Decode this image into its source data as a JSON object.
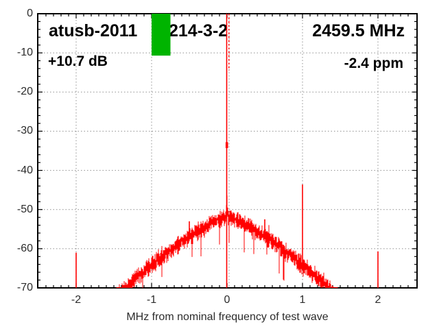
{
  "annotations": {
    "title_left": "atusb-2011",
    "title_right": "214-3-2",
    "frequency": "2459.5 MHz",
    "level": "+10.7 dB",
    "ppm_offset": "-2.4 ppm"
  },
  "chart_data": {
    "type": "line",
    "title": "atusb-2011 214-3-2",
    "xlabel": "MHz from nominal frequency of test wave",
    "ylabel": "",
    "xlim": [
      -2.5,
      2.5
    ],
    "ylim": [
      -70,
      0
    ],
    "x_major_ticks": [
      -2,
      -1,
      0,
      1,
      2
    ],
    "x_tick_labels": [
      "-2",
      "-1",
      "0",
      "1",
      "2"
    ],
    "y_major_ticks": [
      0,
      -10,
      -20,
      -30,
      -40,
      -50,
      -60,
      -70
    ],
    "y_tick_labels": [
      "0",
      "-10",
      "-20",
      "-30",
      "-40",
      "-50",
      "-60",
      "-70"
    ],
    "x_minor_step": 0.1,
    "y_minor_step": 2,
    "grid": {
      "horizontal_db": [
        -10,
        -20,
        -30,
        -40,
        -50,
        -60
      ],
      "vertical_mhz": [
        -2,
        -1,
        0,
        1,
        2
      ],
      "style": "dotted",
      "color": "#9b9b9b"
    },
    "trace_color": "#ff0000",
    "carrier_peak": {
      "mhz": 0,
      "db_top": 0,
      "pedestal_db": -49.5,
      "shoulder_db": -33.5
    },
    "zero_marker": {
      "mhz": 0.025,
      "db_top": 0,
      "db_bottom": -14.5,
      "color": "#ff0000",
      "style": "dashed"
    },
    "noise_hump": {
      "center_db": -51.8,
      "edge_mhz": 1.35,
      "edge_db": -70,
      "shape_exponent": 1.3,
      "jitter_db": 1.8
    },
    "spurs": [
      {
        "mhz": -2.0,
        "db_top": -61.0
      },
      {
        "mhz": -0.76,
        "db_top": -60.0
      },
      {
        "mhz": -0.5,
        "db_top": -53.0
      },
      {
        "mhz": 0.5,
        "db_top": -52.5
      },
      {
        "mhz": 0.75,
        "db_top": -59.0
      },
      {
        "mhz": 1.0,
        "db_top": -43.6
      },
      {
        "mhz": 2.0,
        "db_top": -60.7
      }
    ],
    "marker_bar": {
      "mhz_start": -1.0,
      "mhz_end": -0.75,
      "db_top": 0,
      "db_bottom": -10.7,
      "color": "#00b400"
    }
  }
}
